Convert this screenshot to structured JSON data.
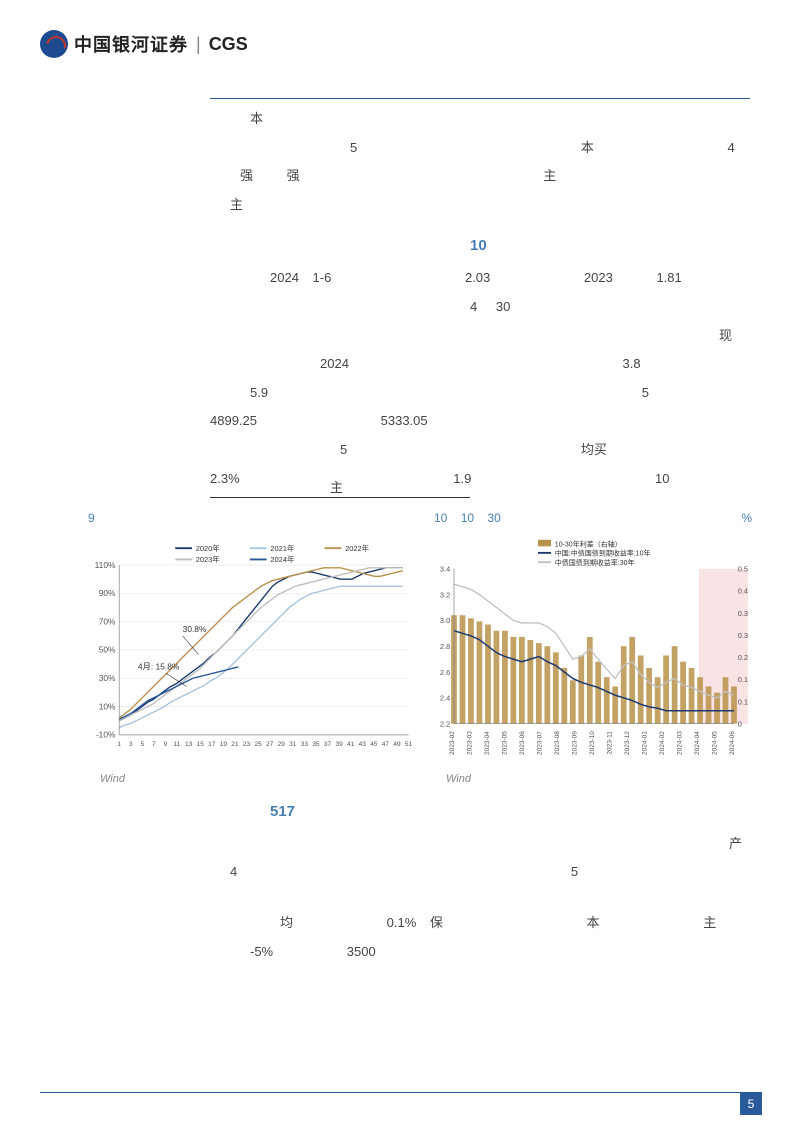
{
  "header": {
    "logo_text": "中国银河证券",
    "logo_cgs": "CGS",
    "divider": "|"
  },
  "para1": {
    "line1_a": "本",
    "line2_a": "5",
    "line2_b": "本",
    "line2_c": "4",
    "line3_a": "强",
    "line3_b": "强",
    "line3_c": "主",
    "line4_a": "主"
  },
  "section_title_1": "10",
  "para2": {
    "l1_year": "2024",
    "l1_months": "1-6",
    "l1_v1": "2.03",
    "l1_y2": "2023",
    "l1_v2": "1.81",
    "l2_a": "4",
    "l2_b": "30",
    "l3_a": "现",
    "l4_year": "2024",
    "l4_v": "3.8",
    "l5_v": "5.9",
    "l5_b": "5",
    "l6_a": "4899.25",
    "l6_b": "5333.05",
    "l7_a": "5",
    "l7_b": "均买",
    "l8_a": "2.3%",
    "l8_b": "1.9",
    "l8_c": "10",
    "l9_a": "主"
  },
  "chart_left": {
    "label_num": "9",
    "legend": [
      "2020年",
      "2021年",
      "2022年",
      "2023年",
      "2024年"
    ],
    "legend_colors": [
      "#1e3a6e",
      "#a8c4e0",
      "#b8924a",
      "#c0c0c0",
      "#2a5a99"
    ],
    "y_ticks": [
      "110%",
      "90%",
      "70%",
      "50%",
      "30%",
      "10%",
      "-10%"
    ],
    "y_min_pct": -10,
    "y_max_pct": 110,
    "x_ticks": [
      "1",
      "3",
      "5",
      "7",
      "9",
      "11",
      "13",
      "15",
      "17",
      "19",
      "21",
      "23",
      "25",
      "27",
      "29",
      "31",
      "33",
      "35",
      "37",
      "39",
      "41",
      "43",
      "45",
      "47",
      "49",
      "51"
    ],
    "annotation1": "30.8%",
    "annotation2": "4月: 15.8%",
    "series": {
      "2020": [
        0,
        2,
        4,
        7,
        10,
        13,
        15,
        18,
        21,
        24,
        26,
        29,
        32,
        35,
        38,
        41,
        45,
        48,
        52,
        56,
        60,
        65,
        70,
        75,
        80,
        85,
        90,
        95,
        98,
        100,
        102,
        103,
        104,
        105,
        105,
        104,
        103,
        102,
        101,
        100,
        100,
        100,
        102,
        104,
        105,
        106,
        107,
        108,
        108,
        108,
        108
      ],
      "2021": [
        -5,
        -3,
        -2,
        0,
        2,
        4,
        6,
        8,
        10,
        13,
        15,
        17,
        19,
        21,
        23,
        25,
        28,
        30,
        33,
        36,
        40,
        44,
        48,
        52,
        56,
        60,
        64,
        68,
        72,
        76,
        80,
        83,
        86,
        88,
        90,
        91,
        92,
        93,
        94,
        95,
        95,
        95,
        95,
        95,
        95,
        95,
        95,
        95,
        95,
        95,
        95
      ],
      "2022": [
        2,
        5,
        8,
        12,
        16,
        20,
        24,
        28,
        32,
        36,
        40,
        44,
        48,
        52,
        56,
        60,
        64,
        68,
        72,
        76,
        80,
        83,
        86,
        89,
        92,
        95,
        97,
        99,
        100,
        101,
        102,
        103,
        104,
        105,
        106,
        107,
        108,
        108,
        108,
        108,
        107,
        106,
        105,
        104,
        103,
        102,
        102,
        103,
        104,
        105,
        106
      ],
      "2023": [
        0,
        2,
        4,
        6,
        8,
        10,
        12,
        15,
        18,
        21,
        24,
        27,
        30,
        33,
        36,
        40,
        44,
        48,
        52,
        56,
        60,
        64,
        68,
        72,
        76,
        80,
        83,
        86,
        89,
        91,
        93,
        95,
        96,
        97,
        98,
        99,
        100,
        101,
        102,
        103,
        104,
        105,
        106,
        107,
        108,
        108,
        108,
        108,
        108,
        108,
        108
      ],
      "2024": [
        1,
        3,
        5,
        8,
        11,
        14,
        16,
        18,
        20,
        22,
        24,
        26,
        28,
        30,
        31,
        32,
        33,
        34,
        35,
        36,
        37,
        38
      ]
    },
    "source": "Wind"
  },
  "chart_right": {
    "label_a": "10",
    "label_b": "10",
    "label_c": "30",
    "label_d": "%",
    "legend": [
      {
        "label": "10-30年利差（右轴）",
        "color": "#b8924a",
        "type": "bar"
      },
      {
        "label": "中国:中债国债到期收益率:10年",
        "color": "#1e3a6e",
        "type": "line"
      },
      {
        "label": "中债国债到期收益率:30年",
        "color": "#c0c0c0",
        "type": "line"
      }
    ],
    "y_left_ticks": [
      "3.4",
      "3.2",
      "3.0",
      "2.8",
      "2.6",
      "2.4",
      "2.2"
    ],
    "y_left_min": 2.2,
    "y_left_max": 3.4,
    "y_right_ticks": [
      "0.5",
      "0.4",
      "0.3",
      "0.3",
      "0.2",
      "0.1",
      "0.1",
      "0"
    ],
    "y_right_min": 0,
    "y_right_max": 0.5,
    "x_ticks": [
      "2023-02",
      "2023-03",
      "2023-04",
      "2023-05",
      "2023-06",
      "2023-07",
      "2023-08",
      "2023-09",
      "2023-10",
      "2023-11",
      "2023-12",
      "2024-01",
      "2024-02",
      "2024-03",
      "2024-04",
      "2024-05",
      "2024-06"
    ],
    "highlight_start": 14,
    "highlight_end": 17,
    "highlight_color": "#f8d7da",
    "spread": [
      0.35,
      0.35,
      0.34,
      0.33,
      0.32,
      0.3,
      0.3,
      0.28,
      0.28,
      0.27,
      0.26,
      0.25,
      0.23,
      0.18,
      0.14,
      0.22,
      0.28,
      0.2,
      0.15,
      0.12,
      0.25,
      0.28,
      0.22,
      0.18,
      0.15,
      0.22,
      0.25,
      0.2,
      0.18,
      0.15,
      0.12,
      0.1,
      0.15,
      0.12
    ],
    "y10": [
      2.92,
      2.9,
      2.88,
      2.85,
      2.8,
      2.75,
      2.72,
      2.7,
      2.68,
      2.7,
      2.72,
      2.68,
      2.65,
      2.6,
      2.55,
      2.52,
      2.5,
      2.48,
      2.45,
      2.42,
      2.4,
      2.38,
      2.35,
      2.33,
      2.32,
      2.3,
      2.3,
      2.3,
      2.3,
      2.3,
      2.3,
      2.3,
      2.3,
      2.3
    ],
    "y30": [
      3.28,
      3.26,
      3.24,
      3.2,
      3.15,
      3.1,
      3.05,
      3.0,
      2.98,
      2.98,
      2.98,
      2.95,
      2.9,
      2.8,
      2.7,
      2.72,
      2.78,
      2.7,
      2.62,
      2.55,
      2.65,
      2.68,
      2.58,
      2.52,
      2.48,
      2.52,
      2.55,
      2.5,
      2.48,
      2.45,
      2.42,
      2.4,
      2.45,
      2.42
    ],
    "source": "Wind"
  },
  "section_title_2": "517",
  "para3": {
    "l1_a": "产",
    "l2_a": "4",
    "l2_b": "5",
    "l3_a": "均",
    "l3_b": "0.1%",
    "l3_c": "保",
    "l3_d": "本",
    "l3_e": "主",
    "l4_a": "-5%",
    "l4_b": "3500"
  },
  "page_number": "5"
}
